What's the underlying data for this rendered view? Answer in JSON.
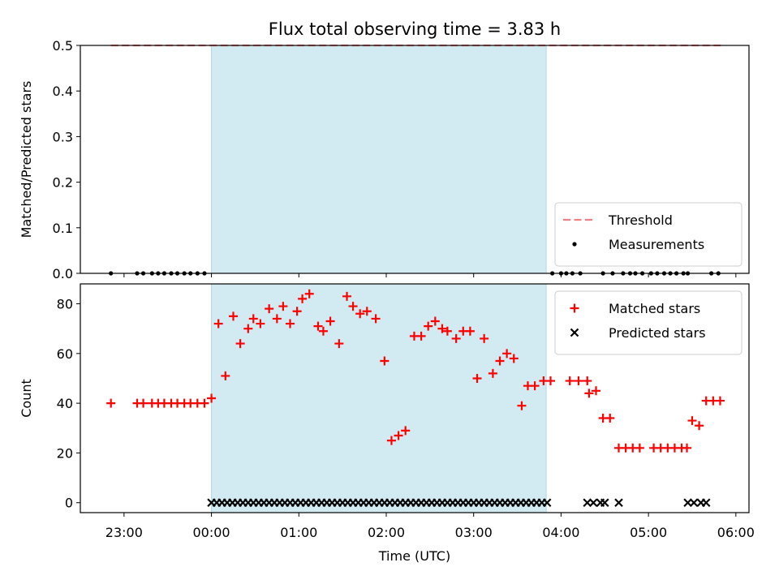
{
  "chart_data": [
    {
      "type": "scatter",
      "title": "Flux total observing time = 3.83 h",
      "ylabel": "Matched/Predicted stars",
      "xlabel": "",
      "xlim": [
        -1.5,
        6.15
      ],
      "ylim": [
        0,
        0.5
      ],
      "yticks": [
        0.0,
        0.1,
        0.2,
        0.3,
        0.4,
        0.5
      ],
      "ytick_labels": [
        "0.0",
        "0.1",
        "0.2",
        "0.3",
        "0.4",
        "0.5"
      ],
      "observing_window": {
        "start": 0.0,
        "end": 3.83,
        "color": "#add8e6"
      },
      "threshold": {
        "name": "Threshold",
        "value": 0.5,
        "x_range": [
          -1.15,
          5.83
        ],
        "color": "#f08080"
      },
      "series": [
        {
          "name": "Measurements",
          "marker": "dot",
          "color": "#000000",
          "x": [
            -1.15,
            -0.85,
            -0.78,
            -0.68,
            -0.61,
            -0.54,
            -0.46,
            -0.39,
            -0.31,
            -0.24,
            -0.16,
            -0.08,
            3.9,
            4.0,
            4.06,
            4.13,
            4.22,
            4.48,
            4.59,
            4.71,
            4.79,
            4.85,
            4.93,
            5.03,
            5.1,
            5.18,
            5.25,
            5.32,
            5.4,
            5.45,
            5.72,
            5.8
          ],
          "y": [
            0,
            0,
            0,
            0,
            0,
            0,
            0,
            0,
            0,
            0,
            0,
            0,
            0,
            0,
            0,
            0,
            0,
            0,
            0,
            0,
            0,
            0,
            0,
            0,
            0,
            0,
            0,
            0,
            0,
            0,
            0,
            0
          ]
        }
      ],
      "legend": {
        "position": "lower-right",
        "entries": [
          "Threshold",
          "Measurements"
        ]
      }
    },
    {
      "type": "scatter",
      "title": "",
      "ylabel": "Count",
      "xlabel": "Time (UTC)",
      "xlim": [
        -1.5,
        6.15
      ],
      "ylim": [
        -4,
        88
      ],
      "yticks": [
        0,
        20,
        40,
        60,
        80
      ],
      "ytick_labels": [
        "0",
        "20",
        "40",
        "60",
        "80"
      ],
      "xticks": [
        -1,
        0,
        1,
        2,
        3,
        4,
        5,
        6
      ],
      "xtick_labels": [
        "23:00",
        "00:00",
        "01:00",
        "02:00",
        "03:00",
        "04:00",
        "05:00",
        "06:00"
      ],
      "observing_window": {
        "start": 0.0,
        "end": 3.83,
        "color": "#add8e6"
      },
      "series": [
        {
          "name": "Matched stars",
          "marker": "plus",
          "color": "#ff0000",
          "x": [
            -1.15,
            -0.85,
            -0.78,
            -0.68,
            -0.61,
            -0.54,
            -0.46,
            -0.39,
            -0.31,
            -0.24,
            -0.16,
            -0.08,
            0.0,
            0.08,
            0.16,
            0.25,
            0.33,
            0.42,
            0.48,
            0.56,
            0.66,
            0.75,
            0.82,
            0.9,
            0.98,
            1.04,
            1.12,
            1.22,
            1.28,
            1.36,
            1.46,
            1.55,
            1.62,
            1.7,
            1.78,
            1.88,
            1.98,
            2.06,
            2.14,
            2.22,
            2.32,
            2.4,
            2.48,
            2.56,
            2.64,
            2.7,
            2.8,
            2.88,
            2.96,
            3.04,
            3.12,
            3.22,
            3.3,
            3.38,
            3.46,
            3.55,
            3.62,
            3.7,
            3.8,
            3.88,
            4.1,
            4.2,
            4.3,
            4.32,
            4.4,
            4.48,
            4.56,
            4.66,
            4.74,
            4.82,
            4.9,
            5.06,
            5.14,
            5.22,
            5.3,
            5.38,
            5.44,
            5.5,
            5.58,
            5.66,
            5.74,
            5.82
          ],
          "y": [
            40,
            40,
            40,
            40,
            40,
            40,
            40,
            40,
            40,
            40,
            40,
            40,
            42,
            72,
            51,
            75,
            64,
            70,
            74,
            72,
            78,
            74,
            79,
            72,
            77,
            82,
            84,
            71,
            69,
            73,
            64,
            83,
            79,
            76,
            77,
            74,
            57,
            25,
            27,
            29,
            67,
            67,
            71,
            73,
            70,
            69,
            66,
            69,
            69,
            50,
            66,
            52,
            57,
            60,
            58,
            39,
            47,
            47,
            49,
            49,
            49,
            49,
            49,
            44,
            45,
            34,
            34,
            22,
            22,
            22,
            22,
            22,
            22,
            22,
            22,
            22,
            22,
            33,
            31,
            41,
            41,
            41
          ]
        },
        {
          "name": "Predicted stars",
          "marker": "x",
          "color": "#000000",
          "x": [
            0.0,
            0.06,
            0.12,
            0.18,
            0.24,
            0.3,
            0.36,
            0.42,
            0.48,
            0.54,
            0.6,
            0.66,
            0.72,
            0.78,
            0.84,
            0.9,
            0.96,
            1.02,
            1.08,
            1.14,
            1.2,
            1.26,
            1.32,
            1.38,
            1.44,
            1.5,
            1.56,
            1.62,
            1.68,
            1.74,
            1.8,
            1.86,
            1.92,
            1.98,
            2.04,
            2.1,
            2.16,
            2.22,
            2.28,
            2.34,
            2.4,
            2.46,
            2.52,
            2.58,
            2.64,
            2.7,
            2.76,
            2.82,
            2.88,
            2.94,
            3.0,
            3.06,
            3.12,
            3.18,
            3.24,
            3.3,
            3.36,
            3.42,
            3.48,
            3.54,
            3.6,
            3.66,
            3.72,
            3.78,
            3.84,
            4.3,
            4.37,
            4.45,
            4.5,
            4.66,
            5.45,
            5.52,
            5.6,
            5.66
          ],
          "y": [
            0,
            0,
            0,
            0,
            0,
            0,
            0,
            0,
            0,
            0,
            0,
            0,
            0,
            0,
            0,
            0,
            0,
            0,
            0,
            0,
            0,
            0,
            0,
            0,
            0,
            0,
            0,
            0,
            0,
            0,
            0,
            0,
            0,
            0,
            0,
            0,
            0,
            0,
            0,
            0,
            0,
            0,
            0,
            0,
            0,
            0,
            0,
            0,
            0,
            0,
            0,
            0,
            0,
            0,
            0,
            0,
            0,
            0,
            0,
            0,
            0,
            0,
            0,
            0,
            0,
            0,
            0,
            0,
            0,
            0,
            0,
            0,
            0,
            0
          ]
        }
      ],
      "legend": {
        "position": "upper-right",
        "entries": [
          "Matched stars",
          "Predicted stars"
        ]
      }
    }
  ]
}
